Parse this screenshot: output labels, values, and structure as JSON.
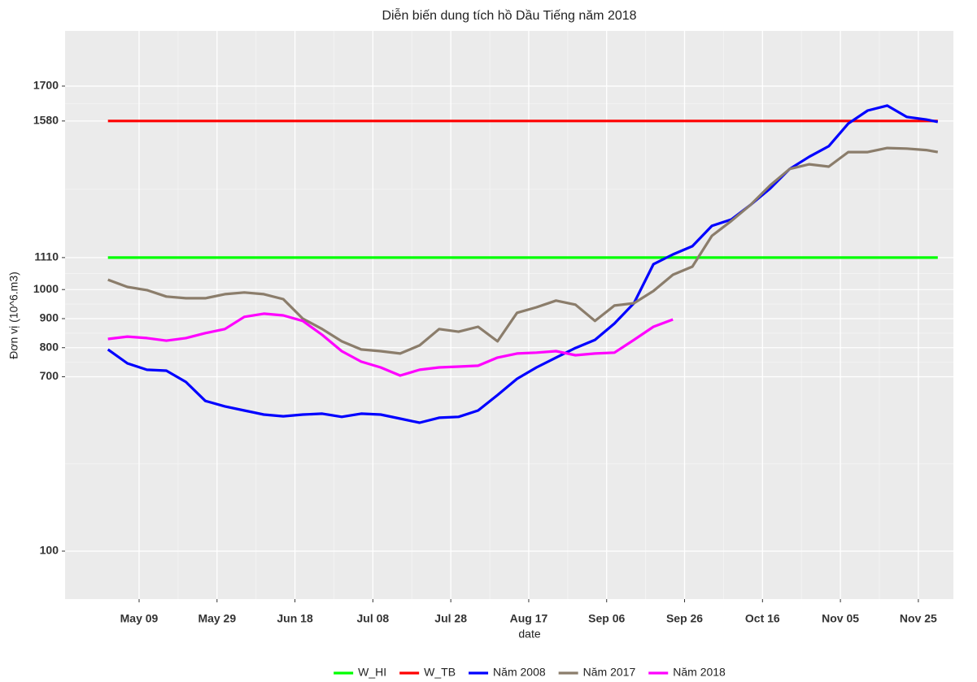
{
  "chart_data": {
    "type": "line",
    "title": "Diễn biến dung tích hồ Dầu Tiếng năm 2018",
    "x_label": "date",
    "y_label": "Đơn vị (10^6.m3)",
    "x": [
      "May 01",
      "May 06",
      "May 11",
      "May 16",
      "May 21",
      "May 26",
      "May 31",
      "Jun 05",
      "Jun 10",
      "Jun 15",
      "Jun 20",
      "Jun 25",
      "Jun 30",
      "Jul 05",
      "Jul 10",
      "Jul 15",
      "Jul 20",
      "Jul 25",
      "Jul 30",
      "Aug 04",
      "Aug 09",
      "Aug 14",
      "Aug 19",
      "Aug 24",
      "Aug 29",
      "Sep 03",
      "Sep 08",
      "Sep 13",
      "Sep 18",
      "Sep 23",
      "Sep 28",
      "Oct 03",
      "Oct 08",
      "Oct 13",
      "Oct 18",
      "Oct 23",
      "Oct 28",
      "Nov 02",
      "Nov 07",
      "Nov 12",
      "Nov 17",
      "Nov 22",
      "Nov 27",
      "Nov 30"
    ],
    "series": [
      {
        "name": "W_HI",
        "color": "#00ff00",
        "values": [
          1110,
          1110,
          1110,
          1110,
          1110,
          1110,
          1110,
          1110,
          1110,
          1110,
          1110,
          1110,
          1110,
          1110,
          1110,
          1110,
          1110,
          1110,
          1110,
          1110,
          1110,
          1110,
          1110,
          1110,
          1110,
          1110,
          1110,
          1110,
          1110,
          1110,
          1110,
          1110,
          1110,
          1110,
          1110,
          1110,
          1110,
          1110,
          1110,
          1110,
          1110,
          1110,
          1110,
          1110
        ]
      },
      {
        "name": "W_TB",
        "color": "#ff0000",
        "values": [
          1580,
          1580,
          1580,
          1580,
          1580,
          1580,
          1580,
          1580,
          1580,
          1580,
          1580,
          1580,
          1580,
          1580,
          1580,
          1580,
          1580,
          1580,
          1580,
          1580,
          1580,
          1580,
          1580,
          1580,
          1580,
          1580,
          1580,
          1580,
          1580,
          1580,
          1580,
          1580,
          1580,
          1580,
          1580,
          1580,
          1580,
          1580,
          1580,
          1580,
          1580,
          1580,
          1580,
          1580
        ]
      },
      {
        "name": "Năm 2008",
        "color": "#0000ff",
        "values": [
          794,
          746,
          724,
          721,
          682,
          617,
          598,
          584,
          570,
          564,
          570,
          573,
          562,
          573,
          570,
          556,
          542,
          559,
          562,
          584,
          637,
          693,
          732,
          766,
          799,
          827,
          883,
          953,
          1087,
          1121,
          1149,
          1219,
          1241,
          1292,
          1348,
          1415,
          1457,
          1493,
          1571,
          1616,
          1633,
          1594,
          1585,
          1577
        ]
      },
      {
        "name": "Năm 2017",
        "color": "#8b7d6b",
        "values": [
          1034,
          1009,
          998,
          976,
          970,
          970,
          984,
          990,
          984,
          967,
          900,
          864,
          822,
          794,
          788,
          780,
          808,
          864,
          855,
          872,
          822,
          920,
          939,
          962,
          948,
          892,
          945,
          953,
          995,
          1051,
          1079,
          1185,
          1236,
          1292,
          1359,
          1415,
          1431,
          1423,
          1473,
          1473,
          1487,
          1485,
          1480,
          1473
        ]
      },
      {
        "name": "Năm 2018",
        "color": "#ff00ff",
        "values": [
          830,
          838,
          833,
          824,
          833,
          850,
          864,
          906,
          917,
          911,
          892,
          844,
          788,
          752,
          732,
          704,
          724,
          732,
          735,
          738,
          766,
          780,
          783,
          788,
          774,
          780,
          783,
          827,
          872,
          897,
          null,
          null,
          null,
          null,
          null,
          null,
          null,
          null,
          null,
          null,
          null,
          null,
          null,
          null
        ]
      }
    ],
    "xlim": [
      "Apr 20",
      "Dec 04"
    ],
    "xticks": [
      "May 09",
      "May 29",
      "Jun 18",
      "Jul 08",
      "Jul 28",
      "Aug 17",
      "Sep 06",
      "Sep 26",
      "Oct 16",
      "Nov 05",
      "Nov 25"
    ],
    "ylim": [
      -65,
      1890
    ],
    "yticks": [
      100,
      700,
      800,
      900,
      1000,
      1110,
      1580,
      1700
    ],
    "grid": true,
    "legend": "bottom"
  }
}
